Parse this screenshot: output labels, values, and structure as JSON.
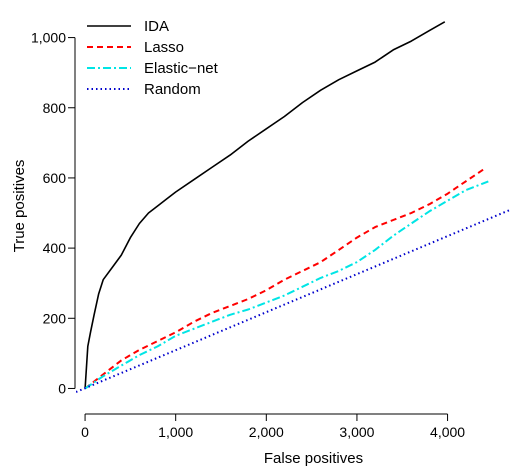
{
  "chart_data": {
    "type": "line",
    "title": "",
    "xlabel": "False positives",
    "ylabel": "True positives",
    "xlim": [
      -100,
      4700
    ],
    "ylim": [
      -50,
      1090
    ],
    "xticks": [
      0,
      1000,
      2000,
      3000,
      4000
    ],
    "xtick_labels": [
      "0",
      "1,000",
      "2,000",
      "3,000",
      "4,000"
    ],
    "yticks": [
      0,
      200,
      400,
      600,
      800,
      1000
    ],
    "ytick_labels": [
      "0",
      "200",
      "400",
      "600",
      "800",
      "1,000"
    ],
    "grid": false,
    "legend_position": "top-left",
    "series": [
      {
        "name": "IDA",
        "color": "#000000",
        "dash": "solid",
        "x": [
          0,
          30,
          60,
          100,
          150,
          200,
          300,
          400,
          500,
          600,
          700,
          800,
          900,
          1000,
          1200,
          1400,
          1600,
          1800,
          2000,
          2200,
          2400,
          2600,
          2800,
          3000,
          3200,
          3400,
          3600,
          3800,
          3970
        ],
        "y": [
          0,
          120,
          160,
          210,
          270,
          310,
          345,
          380,
          430,
          470,
          500,
          520,
          540,
          560,
          595,
          630,
          665,
          705,
          740,
          775,
          815,
          850,
          880,
          905,
          930,
          965,
          990,
          1020,
          1045
        ]
      },
      {
        "name": "Lasso",
        "color": "#ff0000",
        "dash": "dashed",
        "x": [
          0,
          200,
          400,
          600,
          800,
          1000,
          1200,
          1400,
          1600,
          1800,
          2000,
          2200,
          2400,
          2600,
          2800,
          3000,
          3200,
          3400,
          3600,
          3800,
          4000,
          4200,
          4400
        ],
        "y": [
          0,
          40,
          80,
          110,
          135,
          160,
          190,
          215,
          235,
          255,
          280,
          310,
          335,
          360,
          395,
          430,
          460,
          480,
          500,
          525,
          555,
          590,
          625
        ]
      },
      {
        "name": "Elastic−net",
        "color": "#00e5e5",
        "dash": "dashdot",
        "x": [
          0,
          200,
          400,
          600,
          800,
          1000,
          1200,
          1400,
          1600,
          1800,
          2000,
          2200,
          2400,
          2600,
          2800,
          3000,
          3200,
          3400,
          3600,
          3800,
          4000,
          4200,
          4450
        ],
        "y": [
          0,
          35,
          65,
          95,
          120,
          150,
          170,
          190,
          210,
          225,
          245,
          265,
          290,
          315,
          335,
          360,
          395,
          435,
          470,
          505,
          535,
          565,
          590
        ]
      },
      {
        "name": "Random",
        "color": "#0000cc",
        "dash": "dotted",
        "x": [
          -100,
          4700
        ],
        "y": [
          -10,
          510
        ]
      }
    ]
  }
}
